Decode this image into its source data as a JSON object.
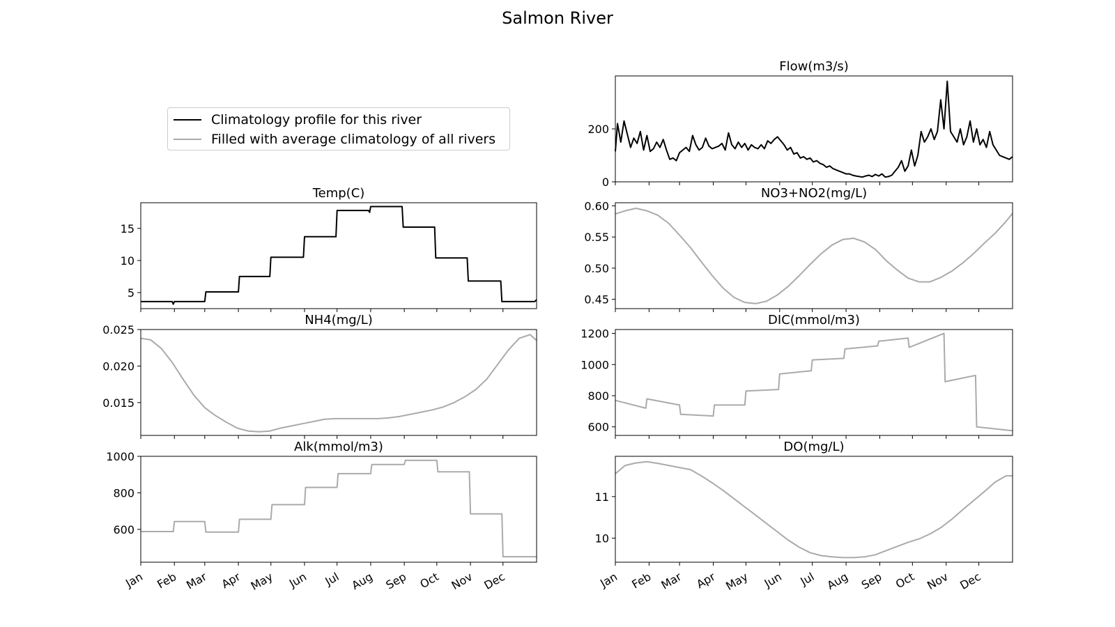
{
  "figure": {
    "title": "Salmon River",
    "legend": [
      {
        "label": "Climatology profile for this river",
        "color": "#000000"
      },
      {
        "label": "Filled with average climatology of all rivers",
        "color": "#aaaaaa"
      }
    ],
    "month_ticks": [
      "Jan",
      "Feb",
      "Mar",
      "Apr",
      "May",
      "Jun",
      "Jul",
      "Aug",
      "Sep",
      "Oct",
      "Nov",
      "Dec"
    ]
  },
  "chart_data": [
    {
      "type": "line",
      "id": "flow",
      "title": "Flow(m3/s)",
      "color": "#000000",
      "xlabel": "",
      "ylabel": "",
      "xlim": [
        1,
        366
      ],
      "ylim": [
        0,
        400
      ],
      "yticks": [
        0,
        200
      ],
      "ytick_labels": [
        "0",
        "200"
      ],
      "x": [
        1,
        3,
        6,
        9,
        12,
        15,
        18,
        21,
        24,
        27,
        30,
        33,
        36,
        39,
        42,
        45,
        48,
        51,
        54,
        57,
        60,
        63,
        66,
        69,
        72,
        75,
        78,
        81,
        84,
        87,
        90,
        93,
        96,
        99,
        102,
        105,
        108,
        111,
        114,
        117,
        120,
        123,
        126,
        129,
        132,
        135,
        138,
        141,
        144,
        147,
        150,
        153,
        156,
        159,
        162,
        165,
        168,
        171,
        174,
        177,
        180,
        183,
        186,
        189,
        192,
        195,
        198,
        201,
        204,
        207,
        210,
        213,
        216,
        219,
        222,
        225,
        228,
        231,
        234,
        237,
        240,
        243,
        246,
        249,
        252,
        255,
        258,
        261,
        264,
        267,
        270,
        273,
        276,
        279,
        282,
        285,
        288,
        291,
        294,
        297,
        300,
        303,
        306,
        309,
        312,
        315,
        318,
        321,
        324,
        327,
        330,
        333,
        336,
        339,
        342,
        345,
        348,
        351,
        354,
        357,
        360,
        363,
        366
      ],
      "values": [
        115,
        220,
        150,
        230,
        180,
        130,
        165,
        145,
        190,
        120,
        175,
        115,
        125,
        150,
        130,
        160,
        120,
        85,
        90,
        80,
        110,
        120,
        130,
        115,
        175,
        140,
        120,
        130,
        165,
        135,
        125,
        130,
        135,
        145,
        120,
        185,
        140,
        125,
        150,
        130,
        145,
        120,
        140,
        130,
        125,
        140,
        125,
        155,
        145,
        160,
        170,
        155,
        140,
        120,
        130,
        105,
        110,
        90,
        95,
        85,
        90,
        75,
        80,
        70,
        65,
        55,
        60,
        50,
        45,
        40,
        35,
        30,
        30,
        25,
        22,
        20,
        18,
        22,
        25,
        20,
        28,
        22,
        30,
        18,
        20,
        25,
        40,
        55,
        80,
        40,
        60,
        120,
        60,
        100,
        190,
        150,
        170,
        200,
        160,
        190,
        310,
        200,
        380,
        190,
        170,
        150,
        200,
        140,
        170,
        230,
        150,
        200,
        140,
        160,
        130,
        190,
        140,
        120,
        100,
        95,
        90,
        85,
        95
      ],
      "missing_fill_values": []
    },
    {
      "type": "line",
      "id": "temp",
      "title": "Temp(C)",
      "color": "#000000",
      "xlabel": "",
      "ylabel": "",
      "xlim": [
        1,
        366
      ],
      "ylim": [
        2.5,
        19
      ],
      "yticks": [
        5,
        10,
        15
      ],
      "ytick_labels": [
        "5",
        "10",
        "15"
      ],
      "x": [
        1,
        30,
        31,
        32,
        60,
        61,
        91,
        92,
        120,
        121,
        151,
        152,
        181,
        182,
        211,
        212,
        213,
        242,
        243,
        272,
        273,
        302,
        303,
        333,
        334,
        364,
        365,
        366
      ],
      "values": [
        3.6,
        3.6,
        3.2,
        3.6,
        3.6,
        5.1,
        5.1,
        7.5,
        7.5,
        10.5,
        10.5,
        13.7,
        13.7,
        17.8,
        17.8,
        17.5,
        18.4,
        18.4,
        15.2,
        15.2,
        10.4,
        10.4,
        6.8,
        6.8,
        3.6,
        3.6,
        3.7,
        3.9
      ]
    },
    {
      "type": "line",
      "id": "no3",
      "title": "NO3+NO2(mg/L)",
      "color": "#aaaaaa",
      "xlabel": "",
      "ylabel": "",
      "xlim": [
        1,
        366
      ],
      "ylim": [
        0.435,
        0.605
      ],
      "yticks": [
        0.45,
        0.5,
        0.55,
        0.6
      ],
      "ytick_labels": [
        "0.45",
        "0.50",
        "0.55",
        "0.60"
      ],
      "x": [
        1,
        10,
        20,
        30,
        40,
        50,
        60,
        70,
        80,
        90,
        100,
        110,
        120,
        130,
        140,
        150,
        160,
        170,
        180,
        190,
        200,
        210,
        220,
        230,
        240,
        250,
        260,
        270,
        280,
        290,
        300,
        310,
        320,
        330,
        340,
        350,
        360,
        366
      ],
      "values": [
        0.587,
        0.592,
        0.596,
        0.592,
        0.585,
        0.572,
        0.553,
        0.533,
        0.51,
        0.488,
        0.468,
        0.453,
        0.445,
        0.443,
        0.447,
        0.457,
        0.471,
        0.488,
        0.506,
        0.523,
        0.537,
        0.546,
        0.548,
        0.542,
        0.53,
        0.512,
        0.497,
        0.484,
        0.478,
        0.478,
        0.485,
        0.495,
        0.508,
        0.523,
        0.54,
        0.556,
        0.575,
        0.588
      ]
    },
    {
      "type": "line",
      "id": "nh4",
      "title": "NH4(mg/L)",
      "color": "#aaaaaa",
      "xlabel": "",
      "ylabel": "",
      "xlim": [
        1,
        366
      ],
      "ylim": [
        0.0105,
        0.025
      ],
      "yticks": [
        0.015,
        0.02,
        0.025
      ],
      "ytick_labels": [
        "0.015",
        "0.020",
        "0.025"
      ],
      "x": [
        1,
        10,
        20,
        30,
        40,
        50,
        60,
        70,
        80,
        90,
        100,
        110,
        120,
        130,
        140,
        150,
        160,
        170,
        180,
        190,
        200,
        210,
        220,
        230,
        240,
        250,
        260,
        270,
        280,
        290,
        300,
        310,
        320,
        330,
        340,
        350,
        360,
        366
      ],
      "values": [
        0.0238,
        0.0236,
        0.0224,
        0.0205,
        0.0182,
        0.016,
        0.0143,
        0.0132,
        0.0123,
        0.0115,
        0.0111,
        0.011,
        0.0111,
        0.0115,
        0.0118,
        0.0121,
        0.0124,
        0.0127,
        0.0128,
        0.0128,
        0.0128,
        0.0128,
        0.0128,
        0.0129,
        0.0131,
        0.0134,
        0.0137,
        0.014,
        0.0144,
        0.015,
        0.0158,
        0.0168,
        0.0182,
        0.0202,
        0.0222,
        0.0238,
        0.0243,
        0.0235
      ]
    },
    {
      "type": "line",
      "id": "dic",
      "title": "DIC(mmol/m3)",
      "color": "#aaaaaa",
      "xlabel": "",
      "ylabel": "",
      "xlim": [
        1,
        366
      ],
      "ylim": [
        545,
        1225
      ],
      "yticks": [
        600,
        800,
        1000,
        1200
      ],
      "ytick_labels": [
        "600",
        "800",
        "1000",
        "1200"
      ],
      "x": [
        1,
        29,
        30,
        60,
        61,
        91,
        92,
        120,
        121,
        151,
        152,
        181,
        182,
        211,
        212,
        242,
        243,
        270,
        271,
        303,
        304,
        332,
        333,
        366
      ],
      "values": [
        770,
        720,
        780,
        740,
        680,
        670,
        740,
        740,
        830,
        840,
        940,
        960,
        1030,
        1040,
        1100,
        1120,
        1150,
        1170,
        1110,
        1200,
        890,
        930,
        600,
        575
      ]
    },
    {
      "type": "line",
      "id": "alk",
      "title": "Alk(mmol/m3)",
      "color": "#aaaaaa",
      "xlabel": "",
      "ylabel": "",
      "xlim": [
        1,
        366
      ],
      "ylim": [
        420,
        1000
      ],
      "yticks": [
        600,
        800,
        1000
      ],
      "ytick_labels": [
        "600",
        "800",
        "1000"
      ],
      "x": [
        1,
        31,
        32,
        60,
        61,
        91,
        92,
        121,
        122,
        152,
        153,
        182,
        183,
        213,
        214,
        244,
        245,
        274,
        275,
        304,
        305,
        334,
        335,
        366
      ],
      "values": [
        588,
        588,
        643,
        643,
        585,
        585,
        655,
        655,
        735,
        735,
        830,
        830,
        905,
        905,
        955,
        955,
        978,
        978,
        915,
        915,
        685,
        685,
        450,
        450
      ]
    },
    {
      "type": "line",
      "id": "do",
      "title": "DO(mg/L)",
      "color": "#aaaaaa",
      "xlabel": "",
      "ylabel": "",
      "xlim": [
        1,
        366
      ],
      "ylim": [
        9.42,
        11.97
      ],
      "yticks": [
        10,
        11
      ],
      "ytick_labels": [
        "10",
        "11"
      ],
      "x": [
        1,
        10,
        20,
        30,
        40,
        50,
        60,
        70,
        80,
        90,
        100,
        110,
        120,
        130,
        140,
        150,
        160,
        170,
        180,
        190,
        200,
        210,
        220,
        230,
        240,
        250,
        260,
        270,
        280,
        290,
        300,
        310,
        320,
        330,
        340,
        350,
        360,
        366
      ],
      "values": [
        11.55,
        11.75,
        11.81,
        11.84,
        11.8,
        11.75,
        11.7,
        11.65,
        11.5,
        11.33,
        11.15,
        10.95,
        10.75,
        10.55,
        10.35,
        10.15,
        9.95,
        9.78,
        9.65,
        9.58,
        9.55,
        9.53,
        9.53,
        9.55,
        9.6,
        9.7,
        9.8,
        9.9,
        9.98,
        10.1,
        10.25,
        10.45,
        10.68,
        10.9,
        11.12,
        11.35,
        11.5,
        11.5
      ]
    }
  ]
}
